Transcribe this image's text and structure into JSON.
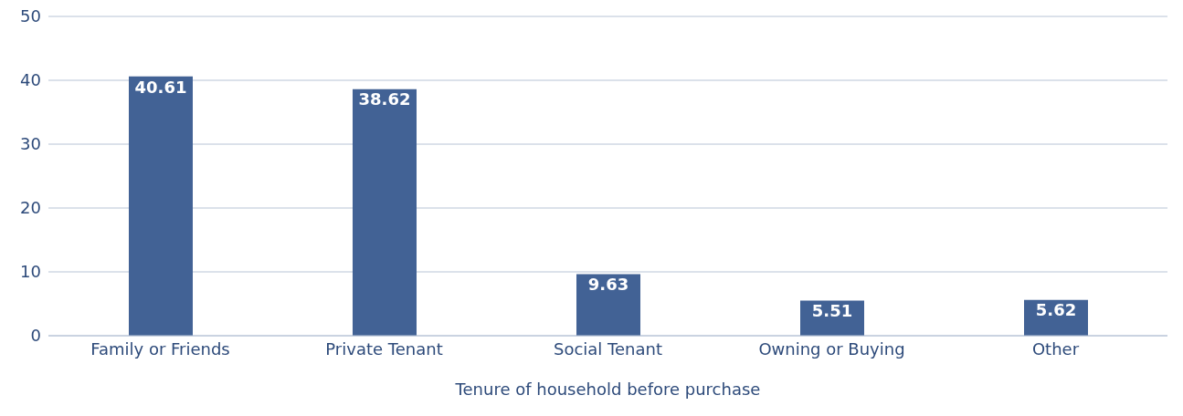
{
  "chart_data": {
    "type": "bar",
    "xlabel": "Tenure of household before purchase",
    "categories": [
      "Family or Friends",
      "Private Tenant",
      "Social Tenant",
      "Owning or Buying",
      "Other"
    ],
    "values": [
      40.61,
      38.62,
      9.63,
      5.51,
      5.62
    ],
    "color": "#426295",
    "ylim": [
      0,
      50
    ],
    "yticks": [
      0,
      10,
      20,
      30,
      40,
      50
    ],
    "grid": "y",
    "data_labels": true
  }
}
